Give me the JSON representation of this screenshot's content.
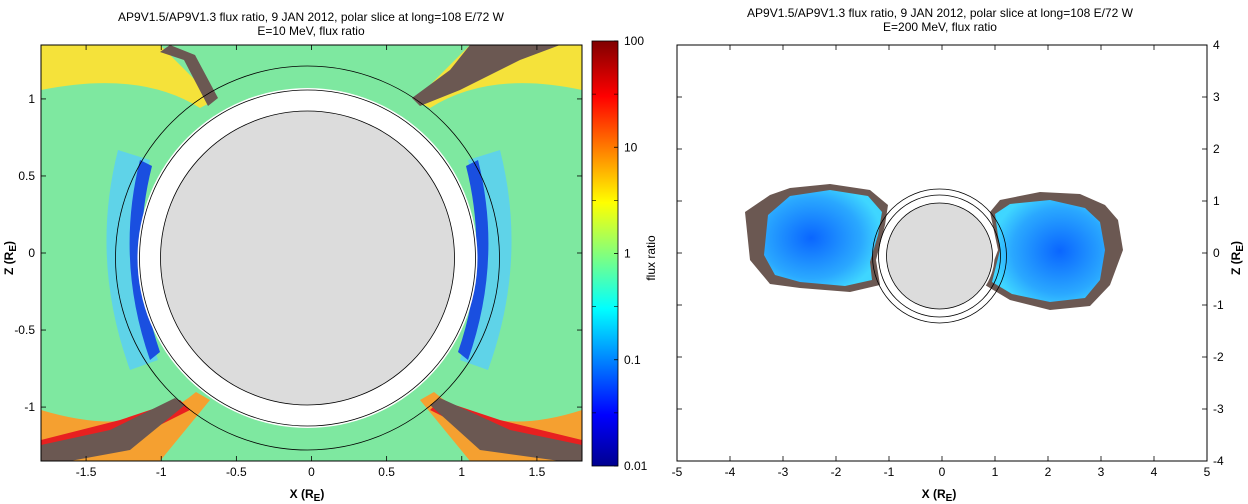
{
  "colorbar": {
    "label": "flux ratio",
    "scale": "log",
    "range": [
      0.01,
      100
    ],
    "ticks": [
      "100",
      "10",
      "1",
      "0.1",
      "0.01"
    ],
    "tick_values": [
      100,
      10,
      1,
      0.1,
      0.01
    ],
    "colormap": "jet",
    "colors": [
      "#00008f",
      "#0000ff",
      "#00ffff",
      "#ffff00",
      "#ff0000",
      "#800000"
    ]
  },
  "colors": {
    "earth": "#dcdcdc",
    "no_data": "#6b5852",
    "background_field": "#7ee8a0",
    "lobe_fill": "#1e90ff"
  },
  "chart_data": [
    {
      "type": "heatmap",
      "title": "AP9V1.5/AP9V1.3 flux ratio, 9 JAN 2012, polar slice at long=108 E/72 W",
      "subtitle": "E=10 MeV, flux ratio",
      "xlabel": "X (R",
      "xlabel_sub": "E",
      "ylabel": "Z (R",
      "ylabel_sub": "E",
      "xlim": [
        -1.8,
        1.8
      ],
      "ylim": [
        -1.35,
        1.35
      ],
      "xticks": [
        -1.5,
        -1,
        -0.5,
        0,
        0.5,
        1,
        1.5
      ],
      "xtick_labels": [
        "-1.5",
        "-1",
        "-0.5",
        "0",
        "0.5",
        "1",
        "1.5"
      ],
      "yticks": [
        1,
        0.5,
        0,
        -0.5,
        -1
      ],
      "ytick_labels": [
        "1",
        "0.5",
        "0",
        "-0.5",
        "-1"
      ],
      "earth_radius": 1,
      "reference_circles": [
        1.2,
        1.3
      ],
      "colorbar": true
    },
    {
      "type": "heatmap",
      "title": "AP9V1.5/AP9V1.3 flux ratio, 9 JAN 2012, polar slice at long=108 E/72 W",
      "subtitle": "E=200 MeV, flux ratio",
      "xlabel": "X (R",
      "xlabel_sub": "E",
      "ylabel": "Z (R",
      "ylabel_sub": "E",
      "xlim": [
        -5,
        5
      ],
      "ylim": [
        -4,
        4
      ],
      "xticks": [
        -5,
        -4,
        -3,
        -2,
        -1,
        0,
        1,
        2,
        3,
        4,
        5
      ],
      "xtick_labels": [
        "-5",
        "-4",
        "-3",
        "-2",
        "-1",
        "0",
        "1",
        "2",
        "3",
        "4",
        "5"
      ],
      "yticks": [
        4,
        3,
        2,
        1,
        0,
        -1,
        -2,
        -3,
        -4
      ],
      "ytick_labels": [
        "4",
        "3",
        "2",
        "1",
        "0",
        "-1",
        "-2",
        "-3",
        "-4"
      ],
      "earth_radius": 1,
      "reference_circles": [
        1.2,
        1.3
      ],
      "colorbar": false
    }
  ]
}
